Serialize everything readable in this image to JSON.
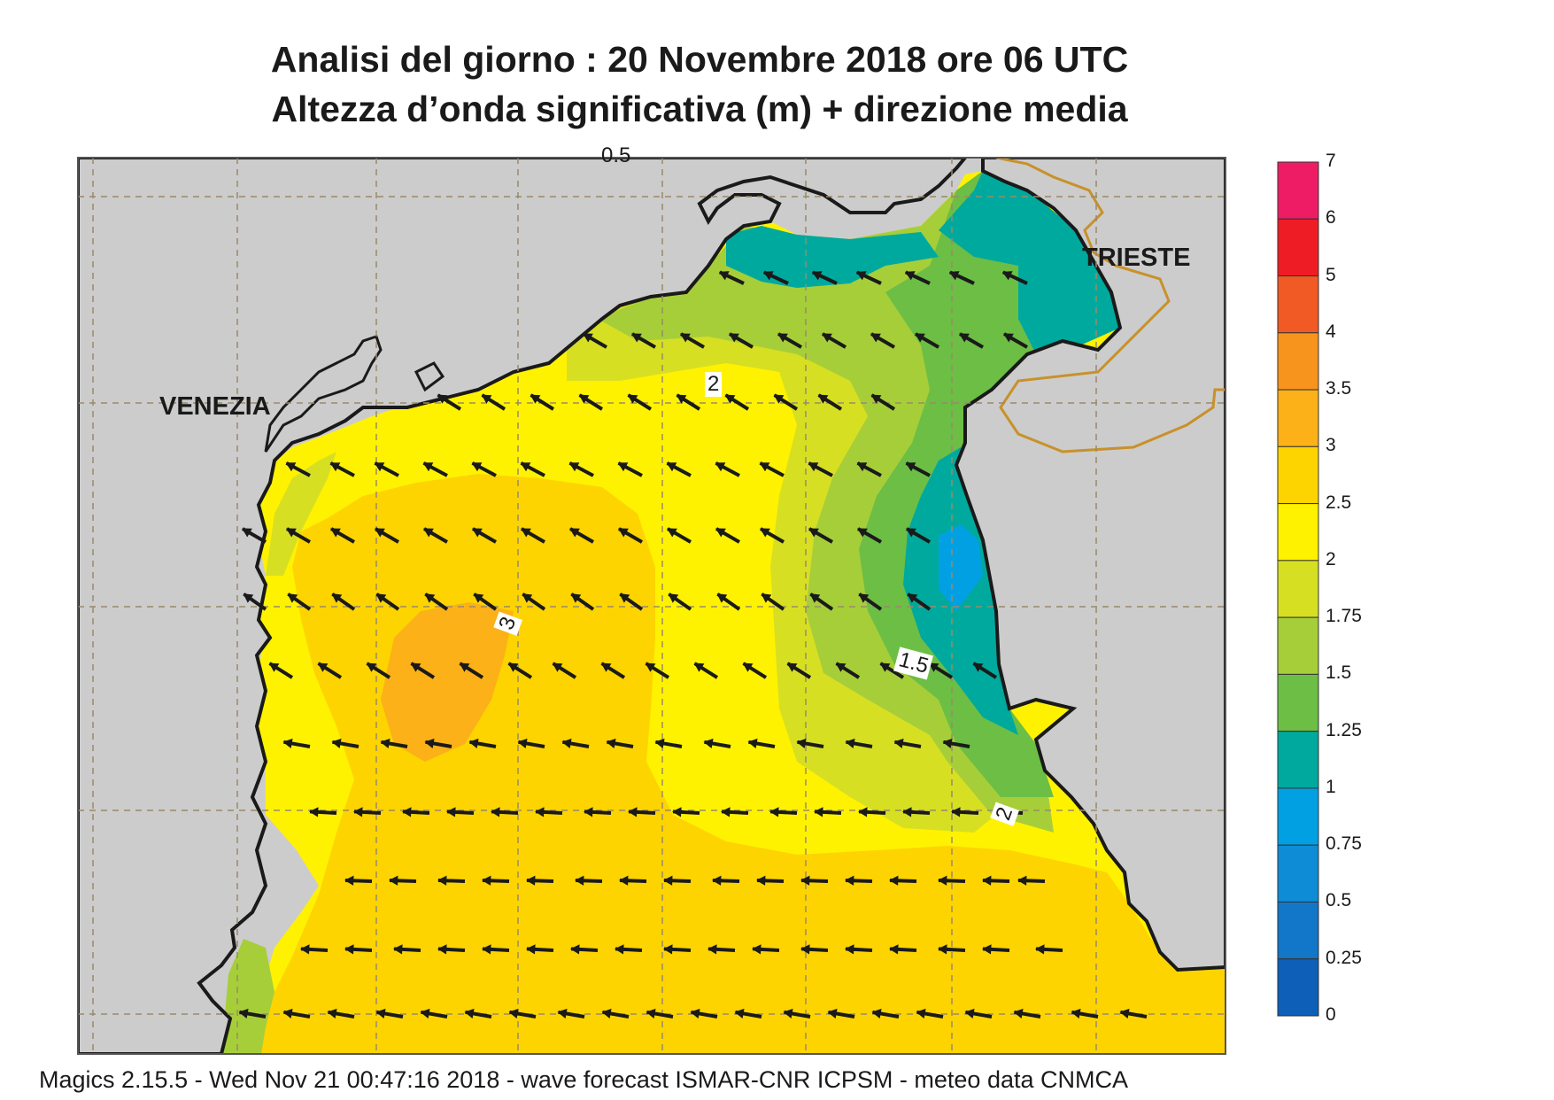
{
  "header": {
    "title_line1": "Analisi del giorno :  20 Novembre  2018   ore 06 UTC",
    "title_line2": "Altezza d’onda significativa (m) + direzione media"
  },
  "map": {
    "cities": [
      {
        "name": "VENEZIA"
      },
      {
        "name": "TRIESTE"
      }
    ],
    "contour_labels": [
      "0.5",
      "2",
      "3",
      "1.5",
      "2"
    ],
    "land_color": "#cccccc",
    "coast_color": "#1a1a1a",
    "border_color": "#c8912a",
    "grid_color": "#9a8a6a"
  },
  "legend": {
    "unit": "m",
    "levels": [
      {
        "label": "7"
      },
      {
        "label": "6",
        "color": "#ee1c64"
      },
      {
        "label": "5",
        "color": "#ee1c24"
      },
      {
        "label": "4",
        "color": "#f15a24"
      },
      {
        "label": "3.5",
        "color": "#f7941d"
      },
      {
        "label": "3",
        "color": "#fbb117"
      },
      {
        "label": "2.5",
        "color": "#fdd400"
      },
      {
        "label": "2",
        "color": "#fff200"
      },
      {
        "label": "1.75",
        "color": "#d7df23"
      },
      {
        "label": "1.5",
        "color": "#a6ce39"
      },
      {
        "label": "1.25",
        "color": "#6cbe45"
      },
      {
        "label": "1",
        "color": "#00a99d"
      },
      {
        "label": "0.75",
        "color": "#00a0e3"
      },
      {
        "label": "0.5",
        "color": "#0f8cd6"
      },
      {
        "label": "0.25",
        "color": "#1276c9"
      },
      {
        "label": "0",
        "color": "#0d5fb8"
      }
    ]
  },
  "footer": {
    "text": "Magics 2.15.5 - Wed Nov 21 00:47:16 2018 - wave forecast  ISMAR-CNR  ICPSM - meteo data   CNMCA"
  }
}
